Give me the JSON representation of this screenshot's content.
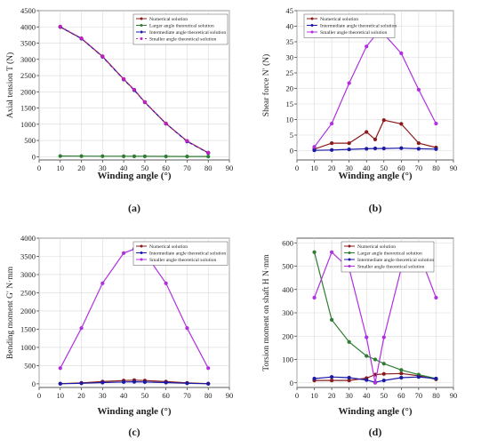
{
  "panel_labels": [
    "(a)",
    "(b)",
    "(c)",
    "(d)"
  ],
  "chart_data": [
    {
      "type": "line",
      "xlabel": "Winding angle (°)",
      "ylabel": "Axial tension  T  (N)",
      "xlim": [
        0,
        90
      ],
      "ylim": [
        -100,
        4500
      ],
      "xticks": [
        0,
        10,
        20,
        30,
        40,
        50,
        60,
        70,
        80,
        90
      ],
      "yticks": [
        0,
        500,
        1000,
        1500,
        2000,
        2500,
        3000,
        3500,
        4000,
        4500
      ],
      "grid": true,
      "legend_position": "top-right",
      "series": [
        {
          "name": "Numerical solution",
          "color": "#8b1a1a",
          "marker": "circle",
          "dash": "",
          "x": [
            10,
            20,
            30,
            40,
            45,
            50,
            60,
            70,
            80
          ],
          "y": [
            4000,
            3640,
            3090,
            2390,
            2060,
            1680,
            1020,
            480,
            120
          ]
        },
        {
          "name": "Larger angle theoretical solution",
          "color": "#2e7d32",
          "marker": "circle",
          "dash": "",
          "x": [
            10,
            20,
            30,
            40,
            45,
            50,
            60,
            70,
            80
          ],
          "y": [
            20,
            18,
            16,
            14,
            13,
            12,
            10,
            8,
            6
          ]
        },
        {
          "name": "Intermediate angle theoretical solution",
          "color": "#1a1aa6",
          "marker": "circle",
          "dash": "4,3",
          "x": [
            10,
            20,
            30,
            40,
            45,
            50,
            60,
            70,
            80
          ],
          "y": [
            4000,
            3640,
            3080,
            2380,
            2050,
            1680,
            1020,
            470,
            115
          ]
        },
        {
          "name": "Smaller angle theoretical solution",
          "color": "#c020c0",
          "marker": "circle",
          "dash": "2,3",
          "x": [
            10,
            20,
            30,
            40,
            45,
            50,
            60,
            70,
            80
          ],
          "y": [
            4010,
            3650,
            3095,
            2395,
            2065,
            1685,
            1025,
            485,
            125
          ]
        }
      ]
    },
    {
      "type": "line",
      "xlabel": "Winding angle (°)",
      "ylabel": "Shear force  N′  (N)",
      "xlim": [
        0,
        90
      ],
      "ylim": [
        -3,
        45
      ],
      "xticks": [
        0,
        10,
        20,
        30,
        40,
        50,
        60,
        70,
        80,
        90
      ],
      "yticks": [
        0,
        5,
        10,
        15,
        20,
        25,
        30,
        35,
        40,
        45
      ],
      "grid": true,
      "legend_position": "top-left",
      "series": [
        {
          "name": "Numerical solution",
          "color": "#8b1a1a",
          "marker": "circle",
          "dash": "",
          "x": [
            10,
            20,
            30,
            40,
            45,
            50,
            60,
            70,
            80
          ],
          "y": [
            0.5,
            2.4,
            2.4,
            6.0,
            3.6,
            9.8,
            8.6,
            2.4,
            1.0
          ]
        },
        {
          "name": "Intermediate angle theoretical solution",
          "color": "#1a1aa6",
          "marker": "circle",
          "dash": "",
          "x": [
            10,
            20,
            30,
            40,
            45,
            50,
            60,
            70,
            80
          ],
          "y": [
            0.1,
            0.2,
            0.4,
            0.6,
            0.7,
            0.7,
            0.8,
            0.6,
            0.5
          ]
        },
        {
          "name": "Smaller angle theoretical solution",
          "color": "#b030e0",
          "marker": "circle",
          "dash": "",
          "x": [
            10,
            20,
            30,
            40,
            45,
            50,
            60,
            70,
            80
          ],
          "y": [
            1.2,
            8.7,
            21.7,
            33.5,
            37.0,
            37.5,
            31.3,
            19.6,
            8.7
          ]
        }
      ]
    },
    {
      "type": "line",
      "xlabel": "Winding angle (°)",
      "ylabel": "Bending moment  G′  N·mm",
      "xlim": [
        0,
        90
      ],
      "ylim": [
        -100,
        4000
      ],
      "xticks": [
        0,
        10,
        20,
        30,
        40,
        50,
        60,
        70,
        80,
        90
      ],
      "yticks": [
        0,
        500,
        1000,
        1500,
        2000,
        2500,
        3000,
        3500,
        4000
      ],
      "grid": true,
      "legend_position": "top-right",
      "series": [
        {
          "name": "Numerical solution",
          "color": "#8b1a1a",
          "marker": "circle",
          "dash": "",
          "x": [
            10,
            20,
            30,
            40,
            45,
            50,
            60,
            70,
            80
          ],
          "y": [
            5,
            25,
            60,
            90,
            100,
            90,
            60,
            25,
            5
          ]
        },
        {
          "name": "Intermediate angle theoretical solution",
          "color": "#1a1aa6",
          "marker": "circle",
          "dash": "",
          "x": [
            10,
            20,
            30,
            40,
            45,
            50,
            60,
            70,
            80
          ],
          "y": [
            2,
            15,
            35,
            50,
            55,
            50,
            35,
            15,
            2
          ]
        },
        {
          "name": "Smaller angle theoretical solution",
          "color": "#b030e0",
          "marker": "circle",
          "dash": "",
          "x": [
            10,
            20,
            30,
            40,
            45,
            50,
            60,
            70,
            80
          ],
          "y": [
            430,
            1530,
            2760,
            3590,
            3700,
            3590,
            2760,
            1530,
            430
          ]
        }
      ]
    },
    {
      "type": "line",
      "xlabel": "Winding angle (°)",
      "ylabel": "Torsion moment on shaft  H  N·mm",
      "xlim": [
        0,
        90
      ],
      "ylim": [
        -20,
        620
      ],
      "xticks": [
        0,
        10,
        20,
        30,
        40,
        50,
        60,
        70,
        80,
        90
      ],
      "yticks": [
        0,
        100,
        200,
        300,
        400,
        500,
        600
      ],
      "grid": true,
      "legend_position": "top-right",
      "series": [
        {
          "name": "Numerical solution",
          "color": "#8b1a1a",
          "marker": "circle",
          "dash": "",
          "x": [
            10,
            20,
            30,
            40,
            45,
            50,
            60,
            70,
            80
          ],
          "y": [
            10,
            10,
            10,
            20,
            35,
            38,
            40,
            30,
            15
          ]
        },
        {
          "name": "Larger angle theoretical solution",
          "color": "#2e7d32",
          "marker": "circle",
          "dash": "",
          "x": [
            10,
            20,
            30,
            40,
            45,
            50,
            60,
            70,
            80
          ],
          "y": [
            560,
            270,
            175,
            115,
            100,
            82,
            55,
            35,
            18
          ]
        },
        {
          "name": "Intermediate angle theoretical solution",
          "color": "#1a1aa6",
          "marker": "circle",
          "dash": "",
          "x": [
            10,
            20,
            30,
            40,
            45,
            50,
            60,
            70,
            80
          ],
          "y": [
            18,
            25,
            22,
            12,
            2,
            10,
            22,
            25,
            18
          ]
        },
        {
          "name": "Smaller angle theoretical solution",
          "color": "#b030e0",
          "marker": "circle",
          "dash": "",
          "x": [
            10,
            20,
            30,
            40,
            45,
            50,
            60,
            70,
            80
          ],
          "y": [
            365,
            560,
            490,
            195,
            0,
            195,
            490,
            560,
            365
          ]
        }
      ]
    }
  ]
}
